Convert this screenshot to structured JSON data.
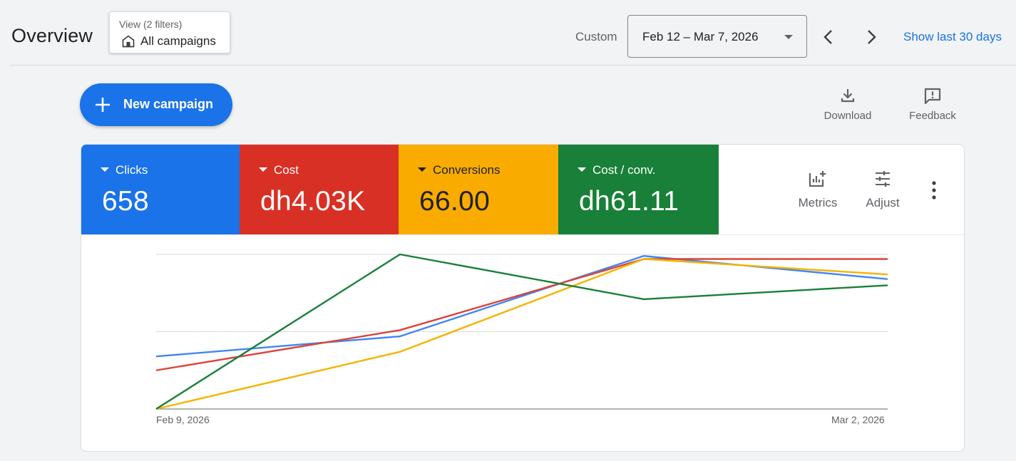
{
  "header": {
    "title": "Overview",
    "view_label": "View (2 filters)",
    "view_value": "All campaigns",
    "range_label": "Custom",
    "date_range": "Feb 12 – Mar 7, 2026",
    "show_last": "Show last 30 days"
  },
  "toolbar": {
    "new_campaign": "New campaign",
    "download": "Download",
    "feedback": "Feedback"
  },
  "metrics": [
    {
      "name": "Clicks",
      "value": "658",
      "color": "#1a73e8"
    },
    {
      "name": "Cost",
      "value": "dh4.03K",
      "color": "#d93025"
    },
    {
      "name": "Conversions",
      "value": "66.00",
      "color": "#f9ab00"
    },
    {
      "name": "Cost / conv.",
      "value": "dh61.11",
      "color": "#188038"
    }
  ],
  "tools": {
    "metrics": "Metrics",
    "adjust": "Adjust"
  },
  "chart_data": {
    "type": "line",
    "x_tick_labels": [
      "Feb 9, 2026",
      "Mar 2, 2026"
    ],
    "x": [
      0,
      1,
      2,
      3
    ],
    "normalized_scale": true,
    "ylim": [
      0,
      1
    ],
    "grid": true,
    "series": [
      {
        "name": "Clicks",
        "color": "#4285f4",
        "values": [
          0.34,
          0.47,
          0.99,
          0.84
        ]
      },
      {
        "name": "Cost",
        "color": "#db4437",
        "values": [
          0.25,
          0.51,
          0.97,
          0.97
        ]
      },
      {
        "name": "Conversions",
        "color": "#f4b400",
        "values": [
          0.0,
          0.37,
          0.97,
          0.87
        ]
      },
      {
        "name": "Cost / conv.",
        "color": "#188038",
        "values": [
          0.0,
          1.0,
          0.71,
          0.8
        ]
      }
    ]
  }
}
